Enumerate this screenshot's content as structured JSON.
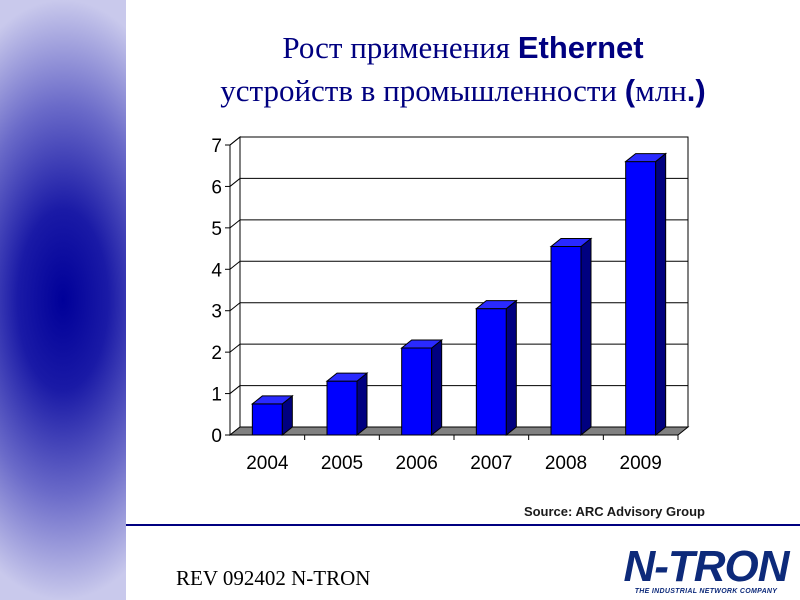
{
  "slide": {
    "title_part1": "Рост  применения ",
    "title_brand": "Ethernet",
    "title_part2": "устройств в промышленности ",
    "title_paren_open": "(",
    "title_unit": "млн",
    "title_paren_close": ".)",
    "source": "Source: ARC Advisory Group",
    "footer": "REV 092402   N-TRON",
    "logo_text": "N-TRON",
    "logo_tagline": "THE INDUSTRIAL NETWORK COMPANY",
    "colors": {
      "accent": "#000080",
      "bar": "#0000ff",
      "sidebar": "#000099"
    }
  },
  "chart_data": {
    "type": "bar",
    "categories": [
      "2004",
      "2005",
      "2006",
      "2007",
      "2008",
      "2009"
    ],
    "values": [
      0.75,
      1.3,
      2.1,
      3.05,
      4.55,
      6.6
    ],
    "ylim": [
      0,
      7
    ],
    "yticks": [
      "0",
      "1",
      "2",
      "3",
      "4",
      "5",
      "6",
      "7"
    ],
    "grid": true,
    "legend": "none",
    "style": "3d"
  }
}
